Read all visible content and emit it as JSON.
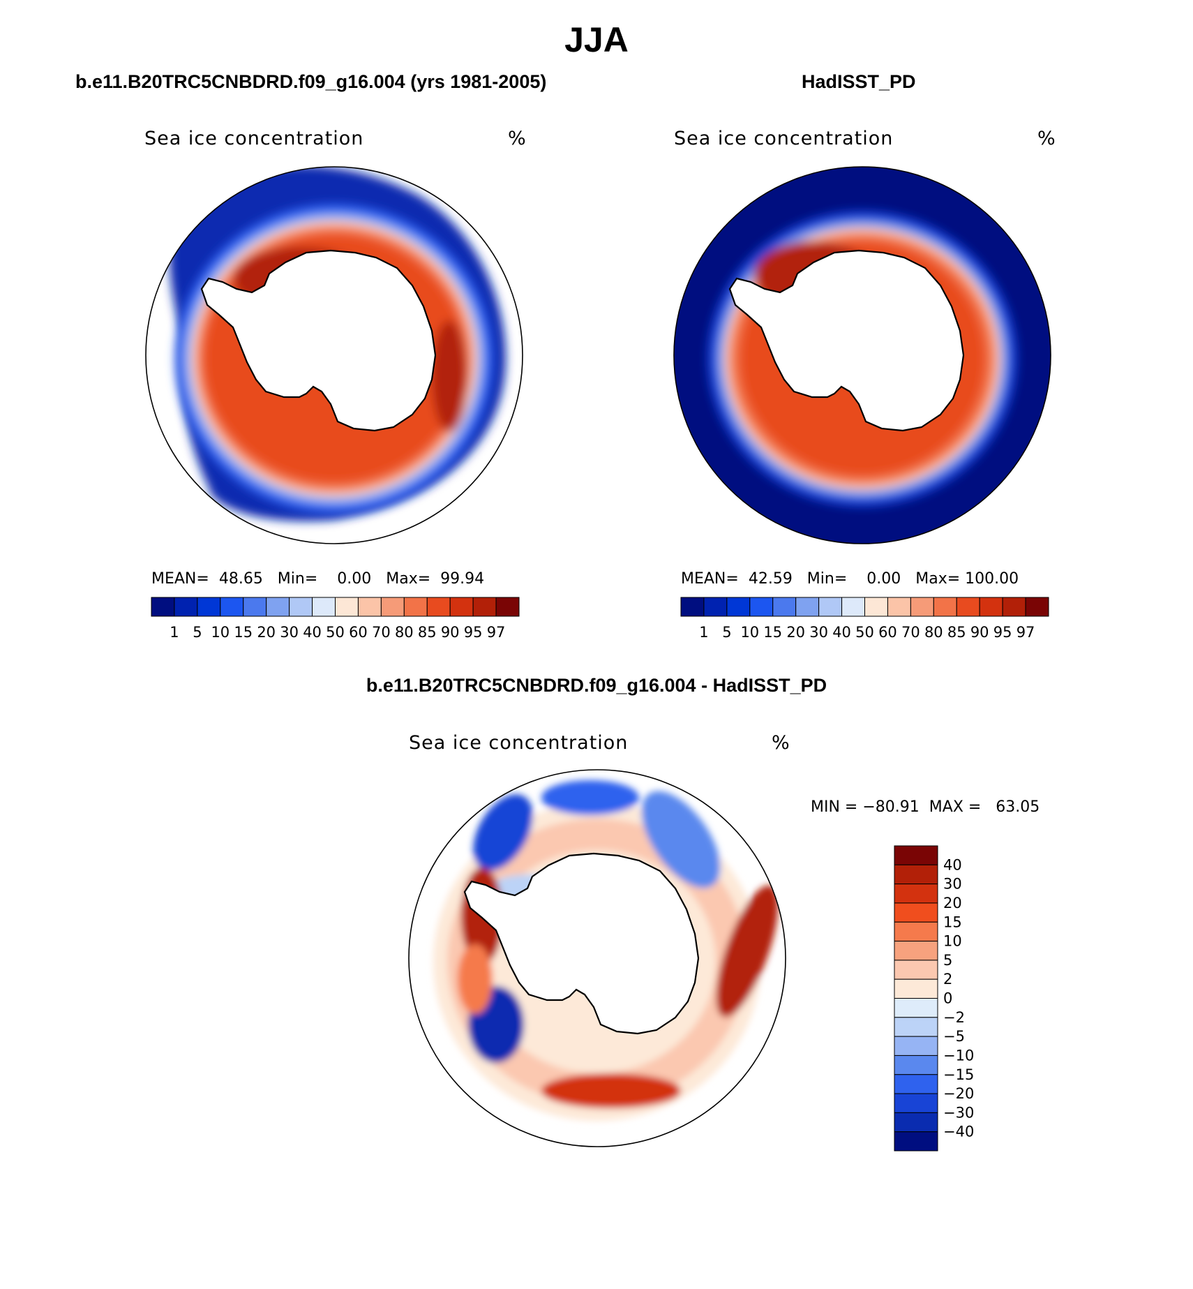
{
  "figure": {
    "title": "JJA",
    "variable_label": "Sea ice concentration",
    "units": "%"
  },
  "panels": {
    "model": {
      "title": "b.e11.B20TRC5CNBDRD.f09_g16.004 (yrs 1981-2005)",
      "stats": {
        "mean_label": "MEAN=",
        "mean": "48.65",
        "min_label": "Min=",
        "min": "0.00",
        "max_label": "Max=",
        "max": "99.94"
      }
    },
    "obs": {
      "title": "HadISST_PD",
      "stats": {
        "mean_label": "MEAN=",
        "mean": "42.59",
        "min_label": "Min=",
        "min": "0.00",
        "max_label": "Max=",
        "max": "100.00"
      }
    },
    "diff": {
      "title": "b.e11.B20TRC5CNBDRD.f09_g16.004 - HadISST_PD",
      "stats": {
        "min_label": "MIN =",
        "min": "−80.91",
        "max_label": "MAX =",
        "max": "63.05"
      }
    }
  },
  "colorbars": {
    "concentration": {
      "colors": [
        "#000e80",
        "#0022b0",
        "#0037d6",
        "#1c56f0",
        "#4b79ee",
        "#7fa2f0",
        "#b0c8f6",
        "#dde9fa",
        "#fde7d6",
        "#fbc4a8",
        "#f69b78",
        "#f27348",
        "#e84b1f",
        "#d3320f",
        "#b22008",
        "#7a0505"
      ],
      "labels": [
        "1",
        "5",
        "10",
        "15",
        "20",
        "30",
        "40",
        "50",
        "60",
        "70",
        "80",
        "85",
        "90",
        "95",
        "97"
      ]
    },
    "difference": {
      "colors": [
        "#7a0505",
        "#b22008",
        "#d3320f",
        "#f04e1e",
        "#f57a4c",
        "#f7a27e",
        "#fbc8b0",
        "#fde9d8",
        "#deecfa",
        "#bcd3f7",
        "#96b4f4",
        "#5a88ee",
        "#2f62ee",
        "#1844d6",
        "#0a2cb0",
        "#000e80"
      ],
      "labels": [
        "40",
        "30",
        "20",
        "15",
        "10",
        "5",
        "2",
        "0",
        "−2",
        "−5",
        "−10",
        "−15",
        "−20",
        "−30",
        "−40"
      ]
    }
  },
  "map_colors": {
    "land": "#ffffff",
    "coast": "#000000",
    "ocean_blank": "#ffffff"
  }
}
